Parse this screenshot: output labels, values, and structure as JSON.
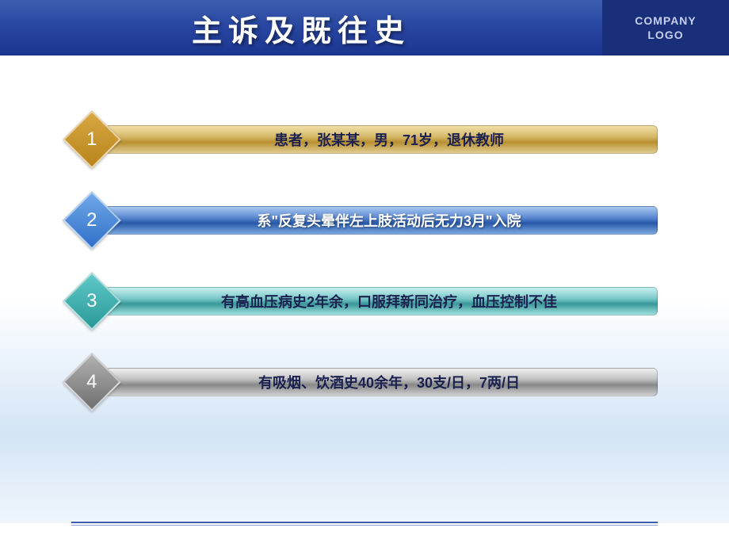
{
  "header": {
    "title": "主诉及既往史",
    "logo_line1": "COMPANY",
    "logo_line2": "LOGO"
  },
  "items": [
    {
      "number": "1",
      "text": "患者，张某某，男，71岁，退休教师",
      "diamond_color": "#b8841a",
      "bar_gradient": [
        "#f0dfa8",
        "#d4b868",
        "#b89030",
        "#e0cc90"
      ],
      "text_color": "#1a2050"
    },
    {
      "number": "2",
      "text": "系\"反复头晕伴左上肢活动后无力3月\"入院",
      "diamond_color": "#3070c8",
      "bar_gradient": [
        "#a8c8f0",
        "#5a88d0",
        "#2858a8",
        "#7ca8e0"
      ],
      "text_color": "#ffffff"
    },
    {
      "number": "3",
      "text": "有高血压病史2年余，口服拜新同治疗，血压控制不佳",
      "diamond_color": "#2a9898",
      "bar_gradient": [
        "#c8f0f0",
        "#7ac8c8",
        "#3a9898",
        "#a0e0e0"
      ],
      "text_color": "#1a2050"
    },
    {
      "number": "4",
      "text": "有吸烟、饮酒史40余年，30支/日，7两/日",
      "diamond_color": "#707070",
      "bar_gradient": [
        "#f0f0f0",
        "#c0c0c0",
        "#888888",
        "#d0d0d0"
      ],
      "text_color": "#1a2050"
    }
  ],
  "colors": {
    "header_bg_start": "#3a5fb0",
    "header_bg_end": "#1a3590",
    "logo_bg": "#1a2f7a",
    "logo_text": "#c5d0f0",
    "footer_line": "#3a5fb0"
  }
}
